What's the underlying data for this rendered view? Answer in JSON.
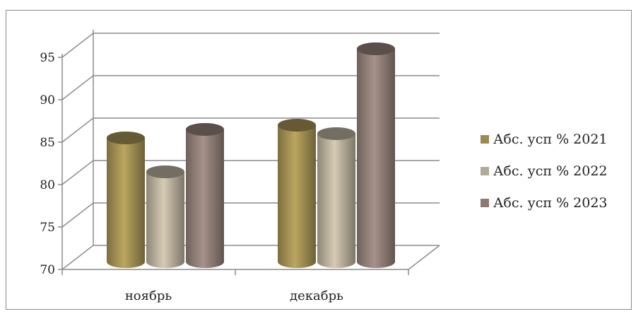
{
  "chart_data": {
    "type": "bar",
    "categories": [
      "ноябрь",
      "декабрь"
    ],
    "series": [
      {
        "name": "Абс. усп % 2021",
        "values": [
          84,
          85.5
        ],
        "color": "#9c8a4f"
      },
      {
        "name": "Абс. усп % 2022",
        "values": [
          80,
          84.5
        ],
        "color": "#b2a996"
      },
      {
        "name": "Абс. усп % 2023",
        "values": [
          85,
          94.5
        ],
        "color": "#8a7a72"
      }
    ],
    "yticks": [
      "70",
      "75",
      "80",
      "85",
      "90",
      "95"
    ],
    "ylim": [
      70,
      95
    ],
    "grid": true,
    "legend": "right"
  }
}
